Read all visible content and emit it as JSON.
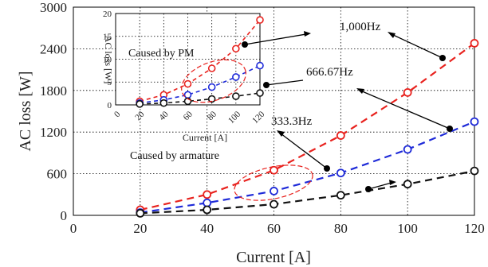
{
  "chart_data": [
    {
      "type": "line",
      "xlabel": "Current [A]",
      "ylabel": "AC loss  [W]",
      "xlim": [
        0,
        120
      ],
      "ylim": [
        0,
        3000
      ],
      "xticks": [
        0,
        20,
        40,
        60,
        80,
        100,
        120
      ],
      "yticks": [
        0,
        600,
        1200,
        1800,
        2400,
        3000
      ],
      "grid": true,
      "x": [
        20,
        40,
        60,
        80,
        100,
        120
      ],
      "series": [
        {
          "name": "1,000Hz",
          "color": "#e8221e",
          "values": [
            80,
            300,
            650,
            1150,
            1770,
            2480
          ]
        },
        {
          "name": "666.67Hz",
          "color": "#1e2ad8",
          "values": [
            40,
            180,
            350,
            610,
            950,
            1350
          ]
        },
        {
          "name": "333.3Hz",
          "color": "#111111",
          "values": [
            30,
            80,
            160,
            290,
            450,
            640
          ]
        }
      ]
    },
    {
      "type": "line",
      "xlabel": "Current [A]",
      "ylabel": "AC loss [W]",
      "xlim": [
        0,
        120
      ],
      "ylim": [
        0,
        20
      ],
      "xticks": [
        0,
        20,
        40,
        60,
        80,
        100,
        120
      ],
      "yticks": [
        0,
        5,
        10,
        15,
        20
      ],
      "grid": true,
      "x": [
        20,
        40,
        60,
        80,
        100,
        120
      ],
      "series": [
        {
          "name": "1,000Hz",
          "color": "#e8221e",
          "values": [
            0.8,
            2.2,
            4.6,
            8.0,
            12.3,
            18.6
          ]
        },
        {
          "name": "666.67Hz",
          "color": "#1e2ad8",
          "values": [
            0.4,
            1.1,
            2.2,
            3.9,
            6.1,
            8.6
          ]
        },
        {
          "name": "333.3Hz",
          "color": "#111111",
          "values": [
            0.2,
            0.4,
            0.8,
            1.3,
            1.9,
            2.6
          ]
        }
      ]
    }
  ],
  "annotations": {
    "freq_1000": "1,000Hz",
    "freq_666": "666.67Hz",
    "freq_333": "333.3Hz",
    "caused_pm": "Caused by PM",
    "caused_armature": "Caused by armature"
  }
}
